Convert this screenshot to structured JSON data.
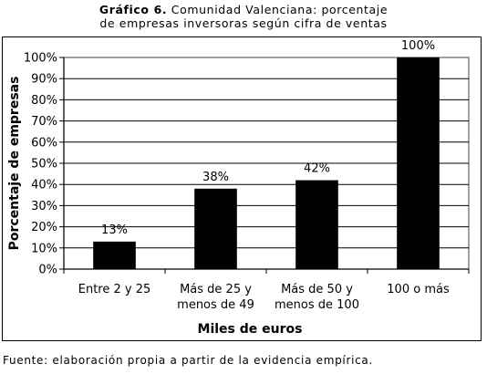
{
  "figure": {
    "title_bold": "Gráfico 6.",
    "title_rest": " Comunidad Valenciana: porcentaje",
    "title_line2": "de empresas inversoras según cifra de ventas",
    "source": "Fuente: elaboración propia a partir de la evidencia empírica."
  },
  "chart_data": {
    "type": "bar",
    "categories": [
      [
        "Entre 2 y 25"
      ],
      [
        "Más de 25 y",
        "menos de 49"
      ],
      [
        "Más de 50 y",
        "menos de 100"
      ],
      [
        "100 o más"
      ]
    ],
    "values": [
      13,
      38,
      42,
      100
    ],
    "data_labels": [
      "13%",
      "38%",
      "42%",
      "100%"
    ],
    "xlabel": "Miles de euros",
    "ylabel": "Porcentaje de empresas",
    "ylim": [
      0,
      100
    ],
    "yticks": [
      0,
      10,
      20,
      30,
      40,
      50,
      60,
      70,
      80,
      90,
      100
    ],
    "ytick_labels": [
      "0%",
      "10%",
      "20%",
      "30%",
      "40%",
      "50%",
      "60%",
      "70%",
      "80%",
      "90%",
      "100%"
    ],
    "grid": true,
    "bar_color": "#000000",
    "plot_background": "#ffffff",
    "legend": "none"
  }
}
